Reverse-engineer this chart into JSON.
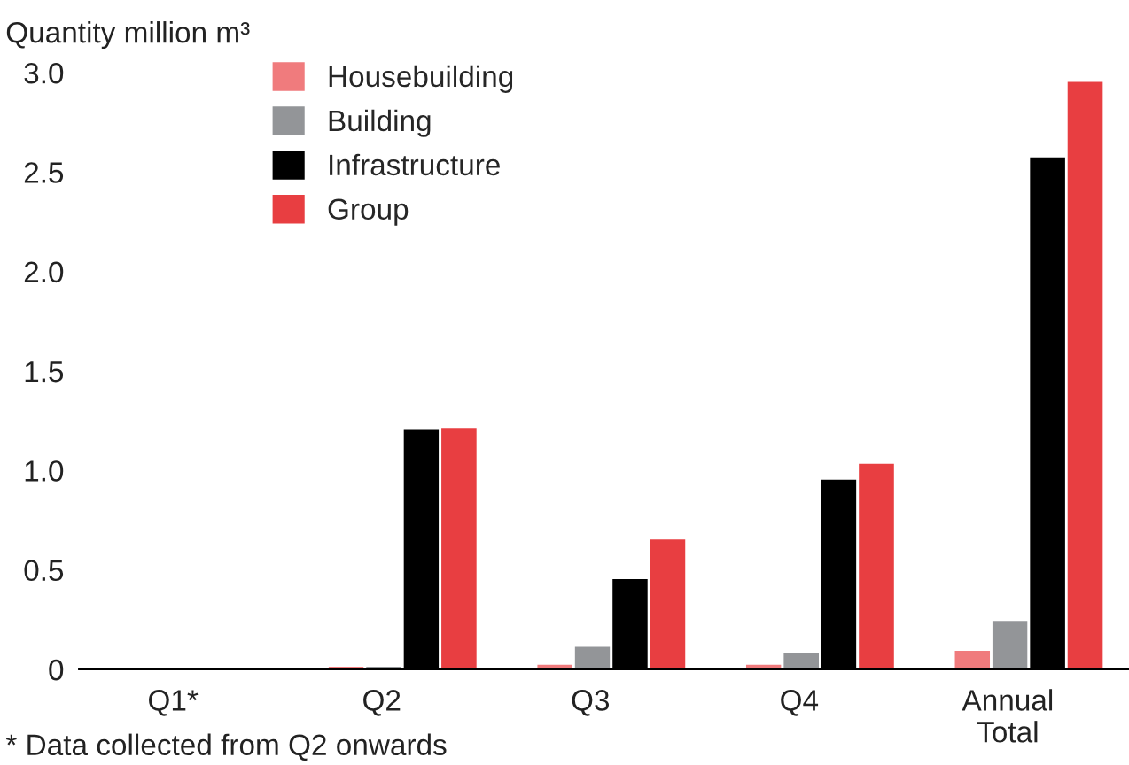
{
  "chart_data": {
    "type": "bar",
    "ylabel": "Quantity million m³",
    "categories": [
      "Q1*",
      "Q2",
      "Q3",
      "Q4",
      "Annual\nTotal"
    ],
    "series": [
      {
        "name": "Housebuilding",
        "color": "#f07b7d",
        "values": [
          null,
          0.02,
          0.03,
          0.03,
          0.1
        ]
      },
      {
        "name": "Building",
        "color": "#939598",
        "values": [
          null,
          0.02,
          0.12,
          0.09,
          0.25
        ]
      },
      {
        "name": "Infrastructure",
        "color": "#000000",
        "values": [
          null,
          1.21,
          0.46,
          0.96,
          2.58
        ]
      },
      {
        "name": "Group",
        "color": "#e83e41",
        "values": [
          null,
          1.22,
          0.66,
          1.04,
          2.96
        ]
      }
    ],
    "ylim": [
      0,
      3.0
    ],
    "yticks": [
      {
        "value": 0,
        "label": "0"
      },
      0.5,
      {
        "value": 1,
        "label": "1.0"
      },
      1.5,
      {
        "value": 2,
        "label": "2.0"
      },
      2.5,
      {
        "value": 3,
        "label": "3.0"
      }
    ],
    "grid": false,
    "legend": "top",
    "annotations": [
      "* Data collected from Q2 onwards"
    ]
  }
}
